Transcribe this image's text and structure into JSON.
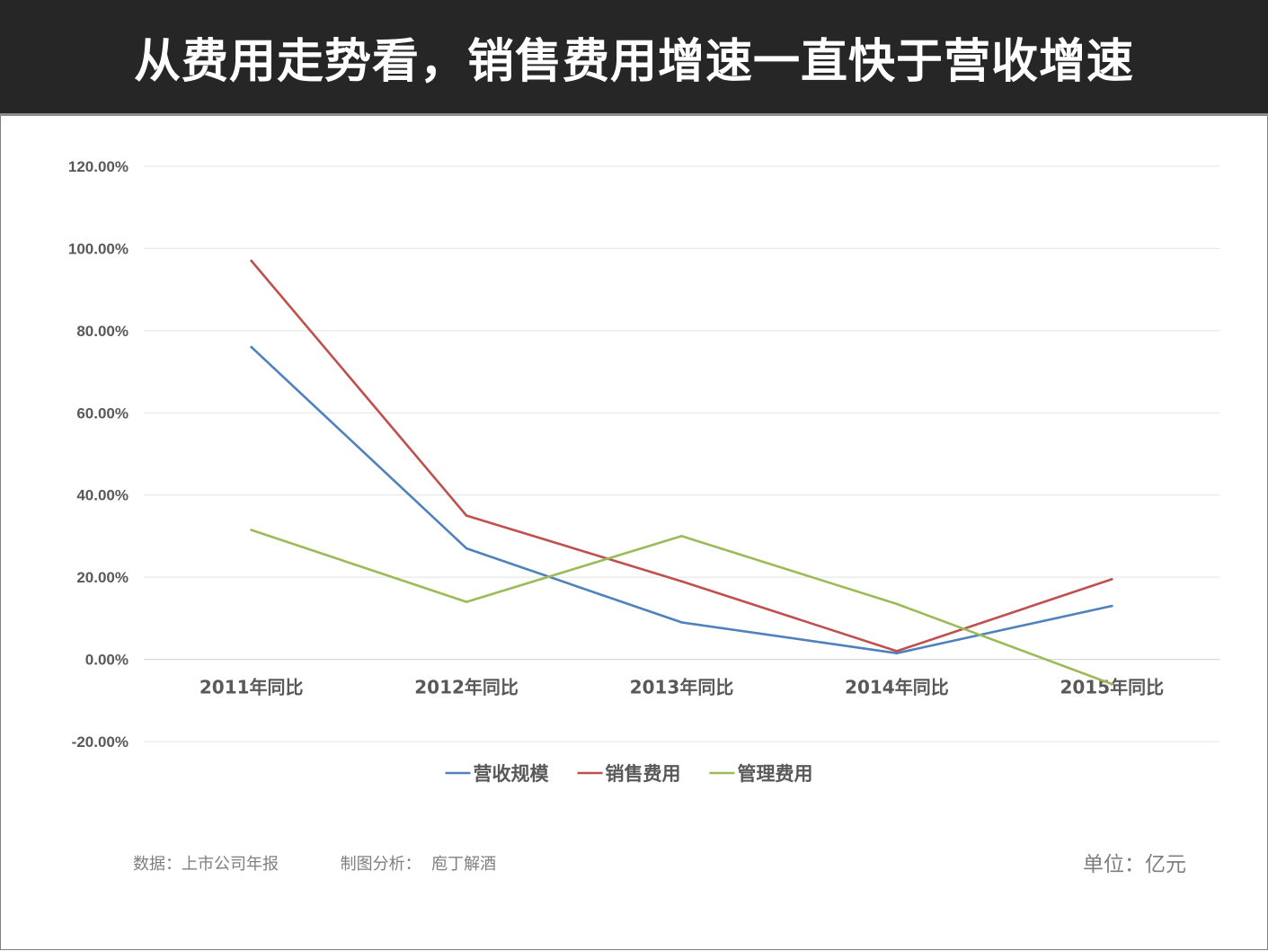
{
  "header": {
    "title": "从费用走势看，销售费用增速一直快于营收增速"
  },
  "chart_data": {
    "type": "line",
    "categories": [
      "2011年同比",
      "2012年同比",
      "2013年同比",
      "2014年同比",
      "2015年同比"
    ],
    "series": [
      {
        "name": "营收规模",
        "color": "#4f81bd",
        "values": [
          76,
          27,
          9,
          1.5,
          13
        ]
      },
      {
        "name": "销售费用",
        "color": "#c0504d",
        "values": [
          97,
          35,
          19,
          2,
          19.5
        ]
      },
      {
        "name": "管理费用",
        "color": "#9bbb59",
        "values": [
          31.5,
          14,
          30,
          13.5,
          -6
        ]
      }
    ],
    "yticks": [
      "120.00%",
      "100.00%",
      "80.00%",
      "60.00%",
      "40.00%",
      "20.00%",
      "0.00%",
      "-20.00%"
    ],
    "ylim": [
      -20,
      120
    ],
    "grid": true,
    "legend": "bottom"
  },
  "footer": {
    "source_label": "数据：",
    "source_value": "上市公司年报",
    "analysis_label": "制图分析：",
    "analysis_value": "庖丁解酒",
    "unit": "单位：亿元"
  }
}
